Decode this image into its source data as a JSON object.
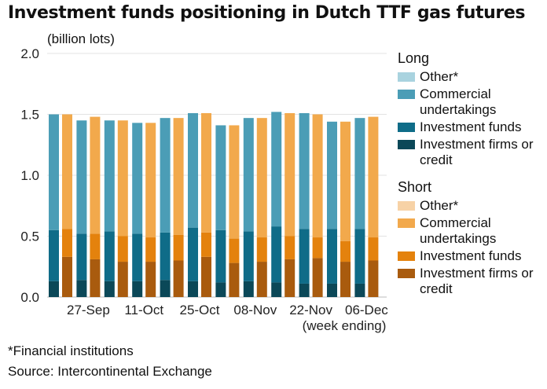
{
  "title": "Investment funds positioning in Dutch TTF gas futures",
  "unit_label": "(billion lots)",
  "footnote": "*Financial institutions",
  "source": "Source: Intercontinental Exchange",
  "legend": {
    "long_title": "Long",
    "short_title": "Short",
    "long_items": [
      {
        "label": "Other*",
        "color": "#a9d3df"
      },
      {
        "label": "Commercial undertakings",
        "color": "#4b9db6"
      },
      {
        "label": "Investment funds",
        "color": "#0f6c88"
      },
      {
        "label": "Investment firms or credit",
        "color": "#0b4858"
      }
    ],
    "short_items": [
      {
        "label": "Other*",
        "color": "#f7d2a6"
      },
      {
        "label": "Commercial undertakings",
        "color": "#f2a94c"
      },
      {
        "label": "Investment funds",
        "color": "#e4820d"
      },
      {
        "label": "Investment firms or credit",
        "color": "#a95b0e"
      }
    ]
  },
  "chart_data": {
    "type": "bar",
    "stacked": true,
    "grouped": [
      "Long",
      "Short"
    ],
    "ylim": [
      0,
      2.0
    ],
    "yticks": [
      "0.0",
      "0.5",
      "1.0",
      "1.5",
      "2.0"
    ],
    "xticks": [
      "27-Sep",
      "11-Oct",
      "25-Oct",
      "08-Nov",
      "22-Nov",
      "06-Dec"
    ],
    "xlabel": "(week ending)",
    "grid": true,
    "weeks": 12,
    "series_long": [
      {
        "name": "Investment firms or credit",
        "values": [
          0.13,
          0.14,
          0.13,
          0.13,
          0.14,
          0.13,
          0.12,
          0.13,
          0.12,
          0.11,
          0.11,
          0.11
        ]
      },
      {
        "name": "Investment funds",
        "values": [
          0.42,
          0.38,
          0.41,
          0.39,
          0.39,
          0.44,
          0.43,
          0.41,
          0.46,
          0.45,
          0.45,
          0.45
        ]
      },
      {
        "name": "Commercial undertakings",
        "values": [
          0.95,
          0.93,
          0.91,
          0.91,
          0.94,
          0.94,
          0.86,
          0.93,
          0.94,
          0.95,
          0.88,
          0.91
        ]
      },
      {
        "name": "Other*",
        "values": [
          0.0,
          0.0,
          0.0,
          0.0,
          0.0,
          0.0,
          0.0,
          0.0,
          0.0,
          0.0,
          0.0,
          0.0
        ]
      }
    ],
    "series_short": [
      {
        "name": "Investment firms or credit",
        "values": [
          0.33,
          0.31,
          0.29,
          0.29,
          0.3,
          0.33,
          0.28,
          0.29,
          0.31,
          0.32,
          0.29,
          0.3
        ]
      },
      {
        "name": "Investment funds",
        "values": [
          0.23,
          0.21,
          0.21,
          0.2,
          0.21,
          0.2,
          0.2,
          0.2,
          0.19,
          0.17,
          0.17,
          0.19
        ]
      },
      {
        "name": "Commercial undertakings",
        "values": [
          0.94,
          0.96,
          0.95,
          0.94,
          0.96,
          0.98,
          0.93,
          0.98,
          1.01,
          1.01,
          0.98,
          0.99
        ]
      },
      {
        "name": "Other*",
        "values": [
          0.0,
          0.0,
          0.0,
          0.0,
          0.0,
          0.0,
          0.0,
          0.0,
          0.0,
          0.0,
          0.0,
          0.0
        ]
      }
    ]
  }
}
